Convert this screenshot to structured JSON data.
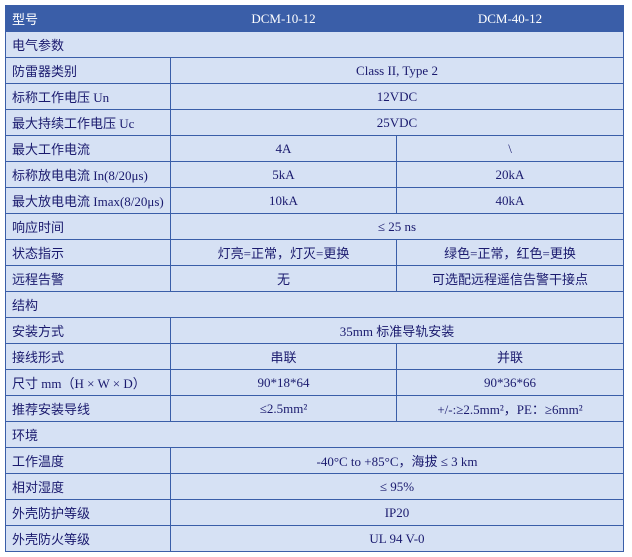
{
  "colors": {
    "header_bg": "#3a5ea8",
    "header_fg": "#ffffff",
    "cell_bg": "#d6e1f4",
    "cell_fg": "#1a1a6e",
    "border": "#3a5ea8"
  },
  "header": {
    "label": "型号",
    "col1": "DCM-10-12",
    "col2": "DCM-40-12"
  },
  "sections": {
    "electrical": "电气参数",
    "structure": "结构",
    "environment": "环境"
  },
  "rows": {
    "spd_class": {
      "label": "防雷器类别",
      "value": "Class II, Type 2"
    },
    "un": {
      "label": "标称工作电压 Un",
      "value": "12VDC"
    },
    "uc": {
      "label": "最大持续工作电压 Uc",
      "value": "25VDC"
    },
    "max_current": {
      "label": "最大工作电流",
      "col1": "4A",
      "col2": "\\"
    },
    "in": {
      "label": "标称放电电流 In(8/20μs)",
      "col1": "5kA",
      "col2": "20kA"
    },
    "imax": {
      "label": "最大放电电流 Imax(8/20μs)",
      "col1": "10kA",
      "col2": "40kA"
    },
    "response": {
      "label": "响应时间",
      "value": "≤ 25 ns"
    },
    "status": {
      "label": "状态指示",
      "col1": "灯亮=正常，灯灭=更换",
      "col2": "绿色=正常，红色=更换"
    },
    "remote": {
      "label": "远程告警",
      "col1": "无",
      "col2": "可选配远程遥信告警干接点"
    },
    "mount": {
      "label": "安装方式",
      "value": "35mm 标准导轨安装"
    },
    "wiring": {
      "label": "接线形式",
      "col1": "串联",
      "col2": "并联"
    },
    "size": {
      "label": "尺寸 mm（H × W × D）",
      "col1": "90*18*64",
      "col2": "90*36*66"
    },
    "cable": {
      "label": "推荐安装导线",
      "col1": "≤2.5mm²",
      "col2": "+/-:≥2.5mm²，PE：≥6mm²"
    },
    "temp": {
      "label": "工作温度",
      "value": "-40°C to +85°C，海拔 ≤ 3 km"
    },
    "humidity": {
      "label": "相对湿度",
      "value": "≤ 95%"
    },
    "ip": {
      "label": "外壳防护等级",
      "value": "IP20"
    },
    "fire": {
      "label": "外壳防火等级",
      "value": "UL 94 V-0"
    }
  }
}
